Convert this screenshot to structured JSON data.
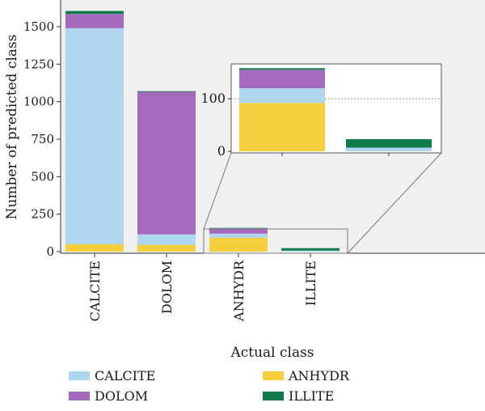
{
  "chart_data": {
    "type": "bar",
    "stacked": true,
    "categories": [
      "CALCITE",
      "DOLOM",
      "ANHYDR",
      "ILLITE"
    ],
    "xlabel": "Actual class",
    "ylabel": "Number of predicted class",
    "ylim": [
      0,
      1600
    ],
    "yticks": [
      0,
      250,
      500,
      750,
      1000,
      1250,
      1500
    ],
    "series": [
      {
        "name": "ANHYDR",
        "color": "#f4d03f",
        "values": [
          50,
          45,
          92,
          0
        ]
      },
      {
        "name": "CALCITE",
        "color": "#aed6f1",
        "values": [
          1440,
          70,
          28,
          7
        ]
      },
      {
        "name": "DOLOM",
        "color": "#a569bd",
        "values": [
          95,
          950,
          35,
          0
        ]
      },
      {
        "name": "ILLITE",
        "color": "#117a4a",
        "values": [
          20,
          5,
          3,
          16
        ]
      }
    ],
    "inset": {
      "categories": [
        "ANHYDR",
        "ILLITE"
      ],
      "ylim": [
        0,
        160
      ],
      "yticks": [
        0,
        100
      ],
      "reference_line": 100
    },
    "legend": {
      "placement": "bottom",
      "entries": [
        {
          "name": "CALCITE",
          "color": "#aed6f1"
        },
        {
          "name": "ANHYDR",
          "color": "#f4d03f"
        },
        {
          "name": "DOLOM",
          "color": "#a569bd"
        },
        {
          "name": "ILLITE",
          "color": "#117a4a"
        }
      ]
    },
    "grid": false,
    "background": "#f0f0f0"
  }
}
